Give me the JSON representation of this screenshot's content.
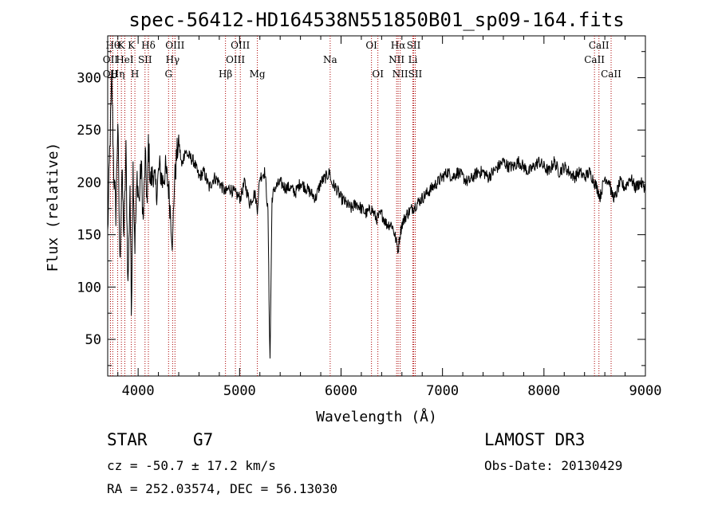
{
  "chart_data": {
    "type": "line",
    "title": "spec-56412-HD164538N551850B01_sp09-164.fits",
    "xlabel": "Wavelength (Å)",
    "ylabel": "Flux (relative)",
    "xlim": [
      3700,
      9000
    ],
    "ylim": [
      15,
      340
    ],
    "xticks": [
      4000,
      5000,
      6000,
      7000,
      8000,
      9000
    ],
    "yticks": [
      50,
      100,
      150,
      200,
      250,
      300
    ],
    "grid": false,
    "line_color": "#000000",
    "marker_color": "#aa0000",
    "series": [
      {
        "values_x": [
          3700,
          3720,
          3740,
          3760,
          3780,
          3800,
          3820,
          3840,
          3860,
          3880,
          3900,
          3920,
          3933,
          3950,
          3968,
          3990,
          4010,
          4030,
          4050,
          4070,
          4090,
          4101,
          4120,
          4150,
          4180,
          4210,
          4240,
          4270,
          4300,
          4320,
          4340,
          4355,
          4380,
          4400,
          4430,
          4460,
          4500,
          4550,
          4600,
          4650,
          4700,
          4750,
          4800,
          4861,
          4900,
          4950,
          5007,
          5050,
          5100,
          5150,
          5175,
          5200,
          5250,
          5280,
          5290,
          5300,
          5320,
          5350,
          5400,
          5450,
          5500,
          5550,
          5600,
          5650,
          5700,
          5750,
          5800,
          5850,
          5893,
          5900,
          5950,
          6000,
          6050,
          6100,
          6150,
          6200,
          6250,
          6300,
          6350,
          6400,
          6450,
          6500,
          6530,
          6563,
          6580,
          6600,
          6650,
          6700,
          6750,
          6800,
          6850,
          6900,
          6950,
          7000,
          7050,
          7100,
          7150,
          7200,
          7250,
          7300,
          7350,
          7400,
          7450,
          7500,
          7550,
          7600,
          7650,
          7700,
          7750,
          7800,
          7850,
          7900,
          7950,
          8000,
          8050,
          8100,
          8150,
          8200,
          8250,
          8300,
          8350,
          8400,
          8450,
          8500,
          8542,
          8550,
          8600,
          8650,
          8662,
          8700,
          8750,
          8800,
          8850,
          8900,
          8950,
          9000
        ],
        "values_y": [
          150,
          230,
          300,
          210,
          170,
          260,
          120,
          210,
          150,
          230,
          100,
          200,
          75,
          215,
          140,
          205,
          180,
          220,
          160,
          225,
          175,
          240,
          200,
          210,
          190,
          215,
          200,
          212,
          195,
          170,
          140,
          195,
          225,
          240,
          215,
          230,
          225,
          220,
          205,
          210,
          195,
          205,
          200,
          190,
          195,
          190,
          185,
          200,
          180,
          190,
          175,
          205,
          210,
          170,
          90,
          30,
          185,
          195,
          200,
          195,
          195,
          190,
          200,
          195,
          190,
          185,
          200,
          205,
          210,
          200,
          195,
          185,
          180,
          175,
          180,
          175,
          170,
          175,
          165,
          170,
          160,
          160,
          150,
          135,
          150,
          160,
          170,
          175,
          180,
          185,
          190,
          195,
          200,
          205,
          210,
          205,
          210,
          205,
          200,
          205,
          210,
          210,
          205,
          210,
          215,
          220,
          215,
          215,
          220,
          215,
          210,
          215,
          220,
          215,
          210,
          220,
          210,
          215,
          210,
          205,
          210,
          205,
          210,
          200,
          190,
          185,
          205,
          200,
          190,
          185,
          200,
          195,
          205,
          195,
          200,
          195
        ]
      }
    ],
    "lines": [
      {
        "x": 3750,
        "label": "Hθ",
        "row": 0
      },
      {
        "x": 3727,
        "label": "OII",
        "row": 1
      },
      {
        "x": 3727,
        "label": "OII",
        "row": 2
      },
      {
        "x": 3798,
        "label": "Hη",
        "row": 2
      },
      {
        "x": 3835,
        "label": "K",
        "row": 0
      },
      {
        "x": 3869,
        "label": "HeI",
        "row": 1
      },
      {
        "x": 3933,
        "label": "K",
        "row": 0
      },
      {
        "x": 3968,
        "label": "H",
        "row": 2
      },
      {
        "x": 4068,
        "label": "SII",
        "row": 1
      },
      {
        "x": 4101,
        "label": "Hδ",
        "row": 0
      },
      {
        "x": 4300,
        "label": "G",
        "row": 2
      },
      {
        "x": 4340,
        "label": "Hγ",
        "row": 1
      },
      {
        "x": 4363,
        "label": "OIII",
        "row": 0
      },
      {
        "x": 4861,
        "label": "Hβ",
        "row": 2
      },
      {
        "x": 4959,
        "label": "OIII",
        "row": 1
      },
      {
        "x": 5007,
        "label": "OIII",
        "row": 0
      },
      {
        "x": 5175,
        "label": "Mg",
        "row": 2
      },
      {
        "x": 5893,
        "label": "Na",
        "row": 1
      },
      {
        "x": 6300,
        "label": "OI",
        "row": 0
      },
      {
        "x": 6363,
        "label": "OI",
        "row": 2
      },
      {
        "x": 6548,
        "label": "NII",
        "row": 1
      },
      {
        "x": 6563,
        "label": "Hα",
        "row": 0
      },
      {
        "x": 6583,
        "label": "NII",
        "row": 2
      },
      {
        "x": 6708,
        "label": "Li",
        "row": 1
      },
      {
        "x": 6716,
        "label": "SII",
        "row": 0
      },
      {
        "x": 6731,
        "label": "SII",
        "row": 2
      },
      {
        "x": 8498,
        "label": "CaII",
        "row": 1
      },
      {
        "x": 8542,
        "label": "CaII",
        "row": 0
      },
      {
        "x": 8662,
        "label": "CaII",
        "row": 2
      }
    ]
  },
  "info": {
    "class": "STAR",
    "subclass": "G7",
    "cz": "cz = -50.7 ± 17.2 km/s",
    "coords": "RA = 252.03574, DEC =  56.13030",
    "survey": "LAMOST DR3",
    "obs_date": "Obs-Date: 20130429"
  }
}
